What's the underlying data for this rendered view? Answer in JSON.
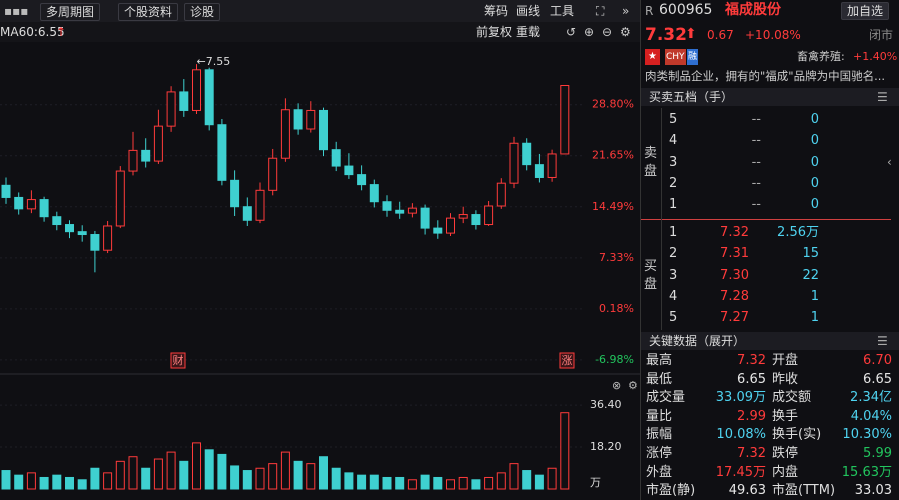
{
  "toolbar": {
    "left": [
      "多周期图",
      "个股资料",
      "诊股"
    ],
    "right": [
      "筹码",
      "画线",
      "工具"
    ]
  },
  "chart_bar": {
    "ma": "MA60:6.55",
    "right": [
      "前复权",
      "重载"
    ]
  },
  "chart_data": [
    {
      "type": "candlestick",
      "peak_label": "←7.55",
      "markers": [
        "财",
        "涨"
      ],
      "up_color": "#ff3b3b",
      "down_color": "#3fd0d0",
      "ylim": [
        -8.4,
        37.6
      ],
      "yticks": [
        {
          "value": 28.8,
          "label": "28.80%"
        },
        {
          "value": 21.65,
          "label": "21.65%"
        },
        {
          "value": 14.49,
          "label": "14.49%"
        },
        {
          "value": 7.33,
          "label": "7.33%"
        },
        {
          "value": 0.18,
          "label": "0.18%"
        },
        {
          "value": -6.98,
          "label": "-6.98%"
        }
      ],
      "open": [
        17.5,
        15.8,
        14.2,
        15.5,
        13.1,
        12.0,
        11.0,
        10.6,
        8.4,
        11.8,
        19.5,
        22.4,
        20.9,
        25.8,
        30.6,
        28.0,
        33.7,
        26.0,
        18.2,
        14.5,
        12.6,
        16.8,
        21.3,
        28.1,
        25.4,
        28.0,
        22.5,
        20.2,
        19.0,
        17.6,
        15.2,
        14.0,
        13.6,
        14.3,
        11.5,
        10.8,
        12.9,
        13.4,
        12.0,
        14.6,
        17.8,
        23.4,
        20.4,
        18.6,
        21.9
      ],
      "close": [
        15.8,
        14.2,
        15.5,
        13.1,
        12.0,
        11.0,
        10.6,
        8.4,
        11.8,
        19.5,
        22.4,
        20.9,
        25.8,
        30.6,
        28.0,
        33.7,
        26.0,
        18.2,
        14.5,
        12.6,
        16.8,
        21.3,
        28.1,
        25.4,
        28.0,
        22.5,
        20.2,
        19.0,
        17.6,
        15.2,
        14.0,
        13.6,
        14.3,
        11.5,
        10.8,
        12.9,
        13.4,
        12.0,
        14.6,
        17.8,
        23.4,
        20.4,
        18.6,
        21.9,
        31.5
      ],
      "high": [
        18.6,
        16.5,
        16.8,
        15.9,
        13.8,
        12.6,
        11.9,
        11.1,
        12.5,
        20.2,
        25.0,
        24.1,
        28.1,
        31.4,
        32.4,
        34.5,
        34.0,
        26.8,
        19.6,
        15.8,
        17.9,
        22.6,
        29.7,
        29.0,
        29.3,
        28.4,
        23.6,
        22.0,
        20.3,
        18.3,
        16.1,
        15.2,
        15.0,
        14.8,
        12.6,
        13.6,
        14.5,
        14.0,
        15.3,
        18.5,
        24.3,
        24.1,
        21.9,
        22.5,
        31.5
      ],
      "low": [
        14.9,
        13.4,
        13.6,
        12.4,
        11.2,
        10.1,
        9.6,
        5.3,
        8.0,
        11.5,
        18.9,
        20.0,
        20.5,
        25.0,
        27.1,
        27.5,
        25.2,
        17.5,
        13.2,
        11.8,
        12.2,
        16.1,
        20.8,
        24.6,
        24.9,
        21.6,
        19.5,
        18.4,
        16.8,
        14.4,
        13.1,
        12.8,
        13.0,
        10.6,
        10.0,
        10.4,
        12.2,
        11.3,
        11.8,
        14.2,
        17.1,
        19.6,
        17.9,
        18.0,
        21.9
      ]
    },
    {
      "type": "bar",
      "unit": "万",
      "ylim": [
        0,
        38.6
      ],
      "yticks": [
        {
          "value": 36.4,
          "label": "36.40"
        },
        {
          "value": 18.2,
          "label": "18.20"
        }
      ],
      "values": [
        8,
        6,
        7,
        5,
        6,
        5,
        4,
        9,
        7,
        12,
        14,
        9,
        13,
        16,
        12,
        20,
        17,
        15,
        10,
        8,
        9,
        11,
        16,
        12,
        11,
        14,
        9,
        7,
        6,
        6,
        5,
        5,
        4,
        6,
        5,
        4,
        5,
        4,
        5,
        7,
        11,
        8,
        6,
        9,
        33.09
      ]
    }
  ],
  "quote": {
    "prefix": "R",
    "code": "600965",
    "name": "福成股份",
    "button": "加自选",
    "price": "7.32",
    "change": "0.67",
    "change_pct": "+10.08%",
    "status": "闭市",
    "tags": [
      "CHY",
      "融"
    ],
    "sector": "畜禽养殖:",
    "sector_pct": "+1.40%",
    "desc": "肉类制品企业，拥有的\"福成\"品牌为中国驰名..."
  },
  "order_book": {
    "title": "买卖五档（手）",
    "sell_label": "卖盘",
    "buy_label": "买盘",
    "sell": [
      [
        "5",
        "--",
        "0"
      ],
      [
        "4",
        "--",
        "0"
      ],
      [
        "3",
        "--",
        "0"
      ],
      [
        "2",
        "--",
        "0"
      ],
      [
        "1",
        "--",
        "0"
      ]
    ],
    "buy": [
      [
        "1",
        "7.32",
        "2.56万"
      ],
      [
        "2",
        "7.31",
        "15"
      ],
      [
        "3",
        "7.30",
        "22"
      ],
      [
        "4",
        "7.28",
        "1"
      ],
      [
        "5",
        "7.27",
        "1"
      ]
    ]
  },
  "key_data": {
    "title": "关键数据（展开）",
    "rows": [
      [
        {
          "label": "最高",
          "value": "7.32",
          "color": "#ff3b3b"
        },
        {
          "label": "开盘",
          "value": "6.70",
          "color": "#ff3b3b"
        }
      ],
      [
        {
          "label": "最低",
          "value": "6.65",
          "color": "#e6e6e6"
        },
        {
          "label": "昨收",
          "value": "6.65",
          "color": "#e6e6e6"
        }
      ],
      [
        {
          "label": "成交量",
          "value": "33.09万",
          "color": "#4fd3f0"
        },
        {
          "label": "成交额",
          "value": "2.34亿",
          "color": "#4fd3f0"
        }
      ],
      [
        {
          "label": "量比",
          "value": "2.99",
          "color": "#ff3b3b"
        },
        {
          "label": "换手",
          "value": "4.04%",
          "color": "#4fd3f0"
        }
      ],
      [
        {
          "label": "振幅",
          "value": "10.08%",
          "color": "#4fd3f0"
        },
        {
          "label": "换手(实)",
          "value": "10.30%",
          "color": "#4fd3f0"
        }
      ],
      [
        {
          "label": "涨停",
          "value": "7.32",
          "color": "#ff3b3b"
        },
        {
          "label": "跌停",
          "value": "5.99",
          "color": "#22c55e"
        }
      ],
      [
        {
          "label": "外盘",
          "value": "17.45万",
          "color": "#ff3b3b"
        },
        {
          "label": "内盘",
          "value": "15.63万",
          "color": "#22c55e"
        }
      ],
      [
        {
          "label": "市盈(静)",
          "value": "49.63",
          "color": "#e6e6e6"
        },
        {
          "label": "市盈(TTM)",
          "value": "33.03",
          "color": "#e6e6e6"
        }
      ]
    ]
  }
}
